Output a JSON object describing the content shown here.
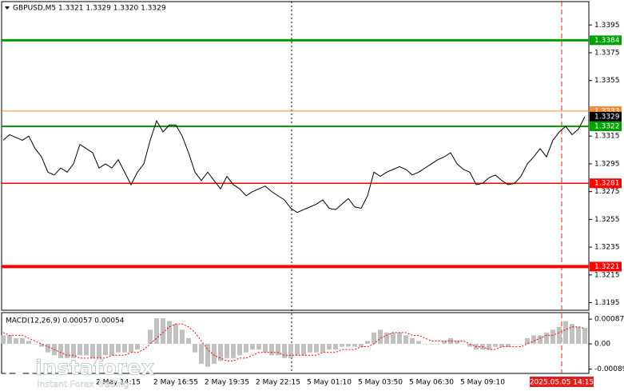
{
  "chart_data": [
    {
      "type": "line",
      "title": "GBPUSD,M5  1.3321 1.3329 1.3320 1.3329",
      "categories": [
        null,
        null,
        null,
        null,
        null,
        null,
        null,
        null,
        null,
        null,
        null,
        null,
        null,
        null,
        null,
        null,
        null,
        null,
        "2 May 14:15",
        null,
        null,
        null,
        null,
        null,
        null,
        null,
        null,
        "2 May 16:55",
        null,
        null,
        null,
        null,
        null,
        null,
        null,
        "2 May 19:35",
        null,
        null,
        null,
        null,
        null,
        null,
        null,
        "2 May 22:15",
        null,
        null,
        null,
        null,
        null,
        null,
        null,
        "5 May 01:10",
        null,
        null,
        null,
        null,
        null,
        null,
        null,
        "5 May 03:50",
        null,
        null,
        null,
        null,
        null,
        null,
        null,
        "5 May 06:30",
        null,
        null,
        null,
        null,
        null,
        null,
        null,
        "5 May 09:10",
        null,
        null,
        null,
        null,
        null,
        null,
        null,
        null,
        null,
        null,
        null,
        null,
        null,
        null,
        null,
        null
      ],
      "series": [
        {
          "color": "#000000",
          "values": [
            1.3312,
            1.3316,
            1.3314,
            1.3312,
            1.3315,
            1.3306,
            1.33,
            1.3289,
            1.3287,
            1.3292,
            1.3289,
            1.3295,
            1.3309,
            1.3306,
            1.3303,
            1.3292,
            1.3295,
            1.3292,
            1.3298,
            1.3289,
            1.328,
            1.3289,
            1.3295,
            1.3312,
            1.3326,
            1.3318,
            1.3323,
            1.3323,
            1.3315,
            1.3303,
            1.3289,
            1.3283,
            1.3289,
            1.3283,
            1.3277,
            1.3286,
            1.328,
            1.3277,
            1.3272,
            1.3275,
            1.3277,
            1.3279,
            1.3275,
            1.3272,
            1.3269,
            1.3263,
            1.326,
            1.3262,
            1.3264,
            1.3266,
            1.3269,
            1.3263,
            1.3262,
            1.3266,
            1.327,
            1.3264,
            1.3263,
            1.3272,
            1.3289,
            1.3286,
            1.3289,
            1.3291,
            1.3293,
            1.3291,
            1.3287,
            1.3289,
            1.3292,
            1.3295,
            1.3298,
            1.33,
            1.3303,
            1.3295,
            1.3291,
            1.3289,
            1.328,
            1.3281,
            1.3285,
            1.3287,
            1.3283,
            1.328,
            1.3281,
            1.3286,
            1.3295,
            1.33,
            1.3306,
            1.33,
            1.3312,
            1.3318,
            1.3322,
            1.3316,
            1.332,
            1.3329
          ]
        }
      ],
      "ylim": [
        1.3189,
        1.3413
      ],
      "yticks": [
        1.3195,
        1.3215,
        1.3235,
        1.3255,
        1.3275,
        1.3295,
        1.3315,
        1.3355,
        1.3375,
        1.3395
      ],
      "levels": [
        {
          "value": 1.3384,
          "color": "#00a000"
        },
        {
          "value": 1.3333,
          "color": "#f08c3c"
        },
        {
          "value": 1.3322,
          "color": "#00a000"
        },
        {
          "value": 1.3281,
          "color": "#ff0000"
        },
        {
          "value": 1.3221,
          "color": "#ff0000"
        }
      ],
      "last_price": 1.3329,
      "cursor_time": "2025.05.05 14:15"
    },
    {
      "type": "bar",
      "title": "MACD(12,26,9) 0.00057 0.00054",
      "series": [
        {
          "color": "#c0c0c0",
          "values": [
            0.0003,
            0.0003,
            0.0002,
            0.0002,
            0.0001,
            0,
            -0.0001,
            -0.0003,
            -0.0004,
            -0.0005,
            -0.0005,
            -0.0005,
            -0.0004,
            -0.0004,
            -0.0005,
            -0.0005,
            -0.0004,
            -0.0004,
            -0.0003,
            -0.0003,
            -0.0003,
            -0.0002,
            0,
            0.0005,
            0.0009,
            0.0009,
            0.0008,
            0.0007,
            0.0005,
            0.0002,
            -0.0003,
            -0.0007,
            -0.0008,
            -0.0007,
            -0.0006,
            -0.0005,
            -0.0005,
            -0.0004,
            -0.0003,
            -0.0002,
            -0.0002,
            -0.0003,
            -0.0004,
            -0.0004,
            -0.0005,
            -0.0005,
            -0.0004,
            -0.0004,
            -0.0003,
            -0.0003,
            -0.0003,
            -0.0002,
            -0.0002,
            -0.0001,
            -0.0001,
            -0.0001,
            -0.0001,
            0.0001,
            0.0004,
            0.0005,
            0.0004,
            0.0004,
            0.0004,
            0.0003,
            0.0002,
            0.0001,
            0,
            0,
            0,
            0.0001,
            0.0002,
            0.0001,
            0,
            -0.0001,
            -0.0002,
            -0.0002,
            -0.0002,
            -0.0001,
            -0.0001,
            -0.0001,
            0,
            0,
            0.0002,
            0.0003,
            0.0003,
            0.0004,
            0.0005,
            0.0006,
            0.0008,
            0.0007,
            0.0006,
            0.00057
          ]
        },
        {
          "type": "line",
          "color": "#ff0000",
          "values": [
            0.0004,
            0.0003,
            0.0003,
            0.0003,
            0.0002,
            0.0001,
            0,
            -0.0001,
            -0.0002,
            -0.0003,
            -0.0004,
            -0.0004,
            -0.0005,
            -0.0005,
            -0.0005,
            -0.0005,
            -0.0005,
            -0.0004,
            -0.0004,
            -0.0004,
            -0.0003,
            -0.0003,
            -0.0002,
            0,
            0.0002,
            0.0004,
            0.0006,
            0.0007,
            0.0007,
            0.0006,
            0.0004,
            0.0001,
            -0.0002,
            -0.0004,
            -0.0005,
            -0.0006,
            -0.0006,
            -0.0005,
            -0.0005,
            -0.0004,
            -0.0003,
            -0.0003,
            -0.0003,
            -0.0003,
            -0.0004,
            -0.0004,
            -0.0004,
            -0.0004,
            -0.0004,
            -0.0004,
            -0.0003,
            -0.0003,
            -0.0003,
            -0.0002,
            -0.0002,
            -0.0002,
            -0.0001,
            -0.0001,
            0,
            0.0002,
            0.0003,
            0.0004,
            0.0004,
            0.0004,
            0.0003,
            0.0003,
            0.0002,
            0.0001,
            0.0001,
            0.0001,
            0.0001,
            0.0001,
            0.0001,
            0,
            -0.0001,
            -0.0001,
            -0.0002,
            -0.0002,
            -0.0001,
            -0.0001,
            -0.0001,
            -0.0001,
            0,
            0.0001,
            0.0002,
            0.0003,
            0.0003,
            0.0004,
            0.0005,
            0.0006,
            0.0006,
            0.00054
          ]
        }
      ],
      "ylim": [
        -0.00101,
        0.00107
      ],
      "yticks": [
        0.00087,
        {
          "value": 0,
          "label": "0.00"
        },
        -0.00089
      ]
    }
  ],
  "watermark": {
    "brand": "instaforex",
    "tagline": "Instant Forex Trading"
  }
}
